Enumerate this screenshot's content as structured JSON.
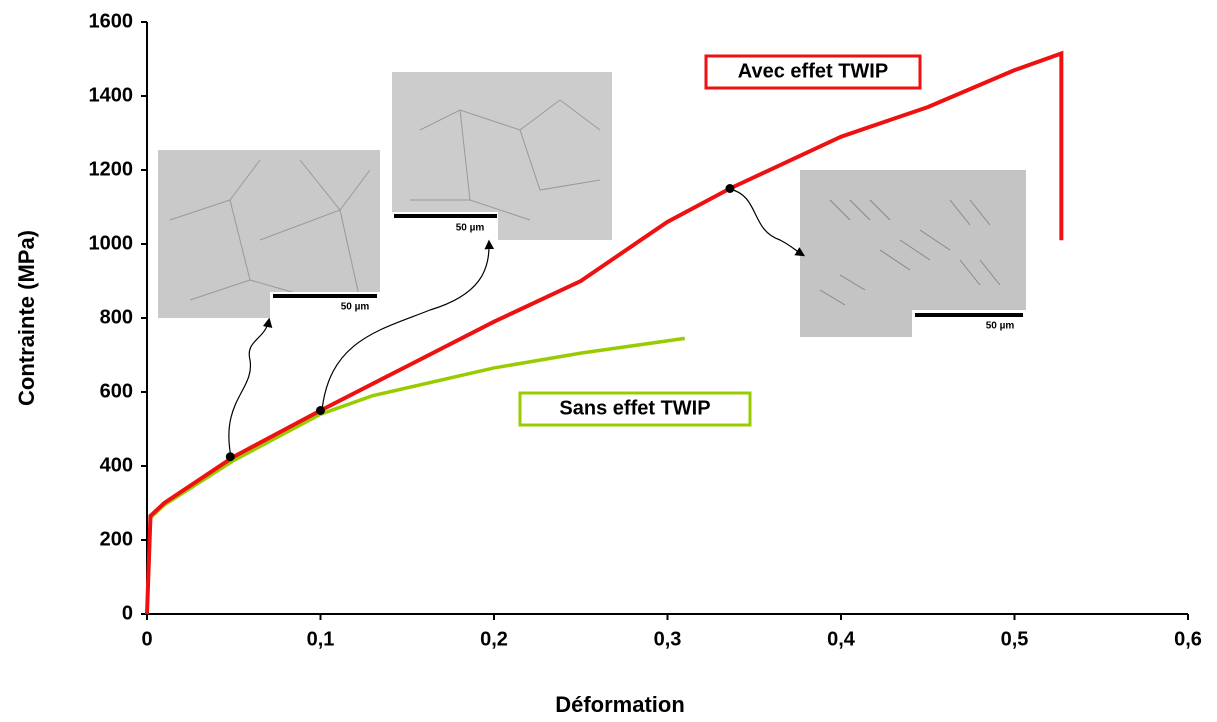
{
  "chart_data": {
    "type": "line",
    "xlabel": "Déformation",
    "ylabel": "Contrainte (MPa)",
    "xlim": [
      0,
      0.6
    ],
    "ylim": [
      0,
      1600
    ],
    "xticks": [
      0,
      {
        "value": 0.1,
        "label": "0,1"
      },
      {
        "value": 0.2,
        "label": "0,2"
      },
      {
        "value": 0.3,
        "label": "0,3"
      },
      {
        "value": 0.4,
        "label": "0,4"
      },
      {
        "value": 0.5,
        "label": "0,5"
      },
      {
        "value": 0.6,
        "label": "0,6"
      }
    ],
    "yticks": [
      0,
      200,
      400,
      600,
      800,
      1000,
      1200,
      1400,
      1600
    ],
    "series": [
      {
        "name": "Sans effet TWIP",
        "color": "#99cc00",
        "x": [
          0,
          0.002,
          0.01,
          0.05,
          0.1,
          0.13,
          0.2,
          0.25,
          0.31
        ],
        "values": [
          0,
          260,
          295,
          415,
          540,
          590,
          665,
          705,
          745
        ]
      },
      {
        "name": "Avec effet TWIP",
        "color": "#ee1111",
        "x": [
          0,
          0.002,
          0.01,
          0.05,
          0.1,
          0.15,
          0.2,
          0.25,
          0.3,
          0.336,
          0.4,
          0.45,
          0.5,
          0.527,
          0.527
        ],
        "values": [
          0,
          265,
          300,
          425,
          550,
          670,
          790,
          900,
          1060,
          1150,
          1290,
          1370,
          1470,
          1515,
          1010
        ]
      }
    ],
    "points": {
      "x": [
        0.048,
        0.1,
        0.336
      ],
      "values": [
        425,
        550,
        1150
      ]
    },
    "scale_labels": [
      "50 µm",
      "50 µm",
      "50 µm"
    ]
  }
}
